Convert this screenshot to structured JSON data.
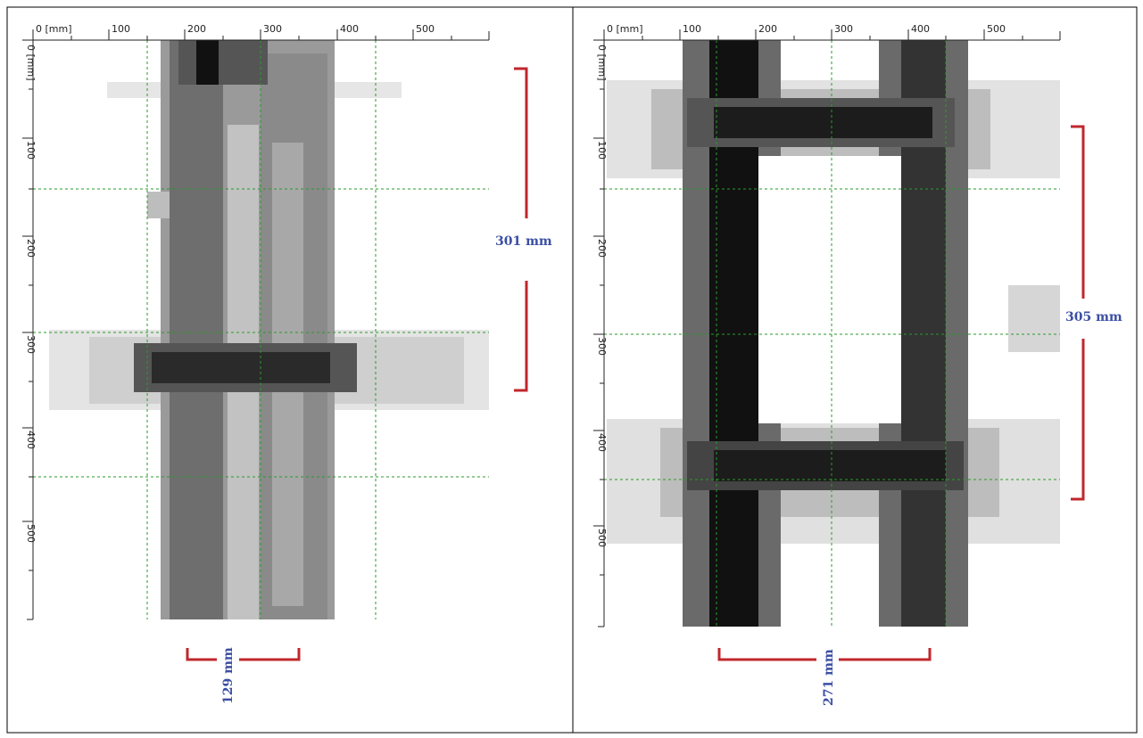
{
  "panels": [
    {
      "x_ticks": [
        "0 [mm]",
        "100",
        "200",
        "300",
        "400",
        "500"
      ],
      "y_ticks": [
        "0 [mm]",
        "100",
        "200",
        "300",
        "400",
        "500"
      ],
      "vertical_dimension": "301 mm",
      "horizontal_dimension": "129 mm"
    },
    {
      "x_ticks": [
        "0 [mm]",
        "100",
        "200",
        "300",
        "400",
        "500"
      ],
      "y_ticks": [
        "0 [mm]",
        "100",
        "200",
        "300",
        "400",
        "500"
      ],
      "vertical_dimension": "305 mm",
      "horizontal_dimension": "271 mm"
    }
  ]
}
